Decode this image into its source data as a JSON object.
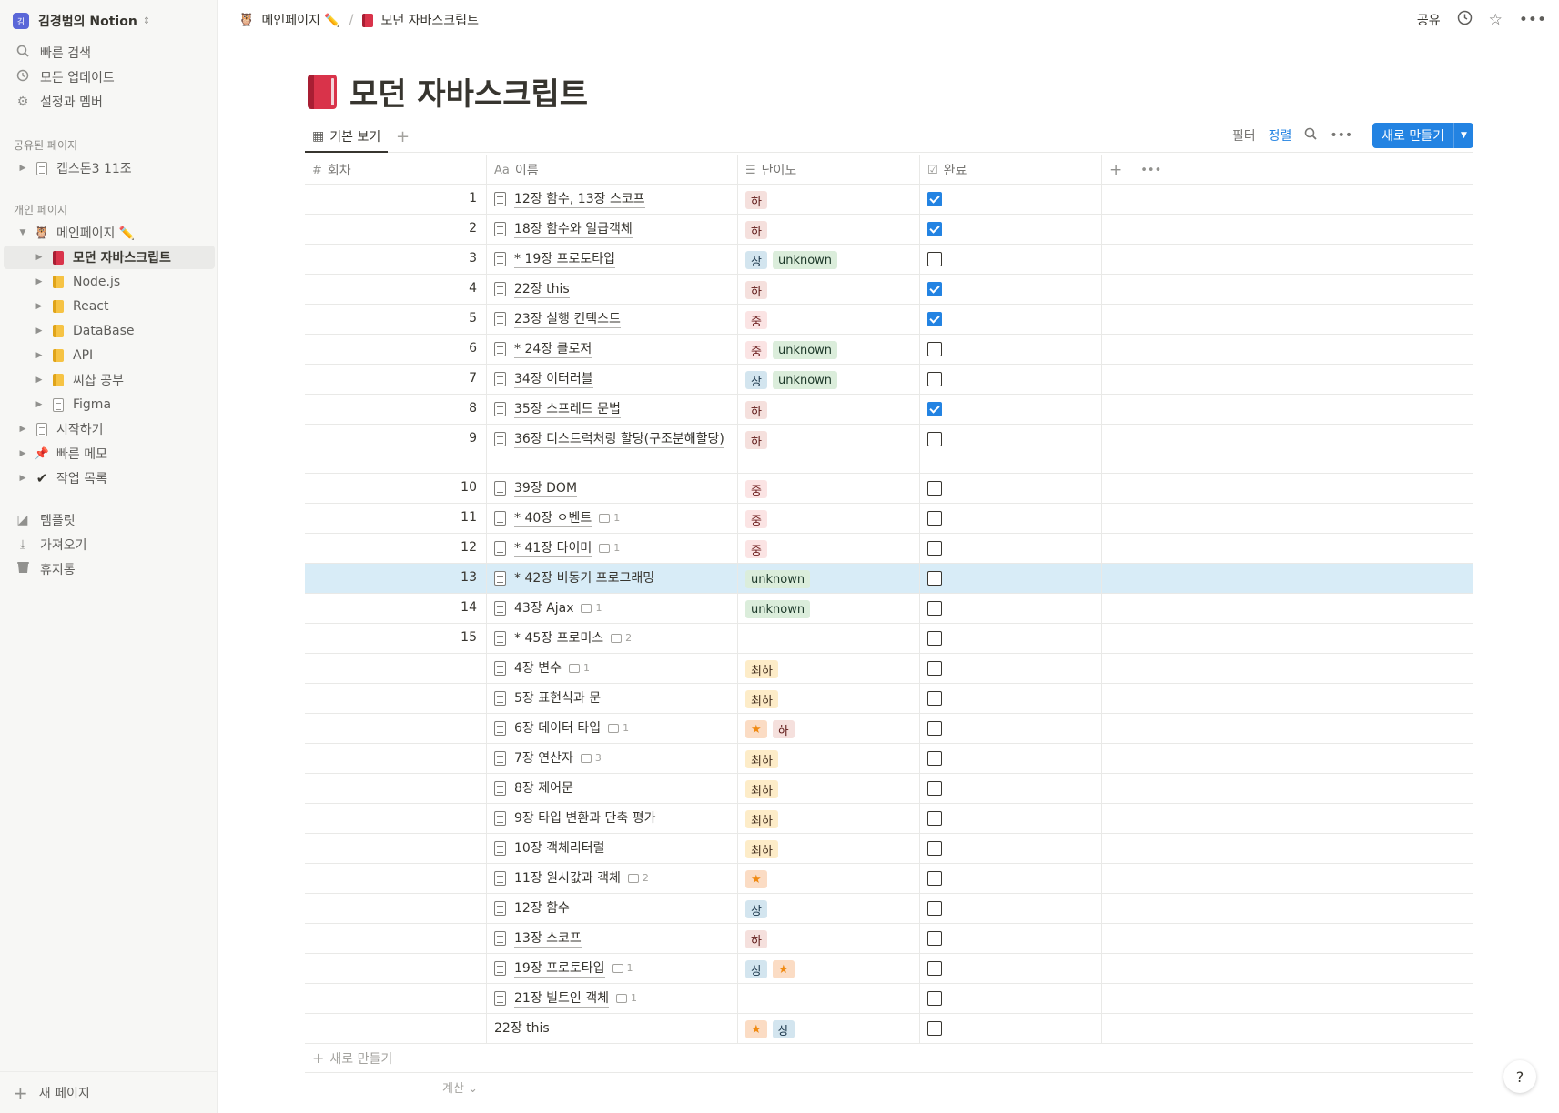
{
  "workspace": {
    "avatar": "김",
    "name": "김경범의 Notion"
  },
  "nav": [
    {
      "icon": "search-icon",
      "label": "빠른 검색"
    },
    {
      "icon": "clock-icon",
      "label": "모든 업데이트"
    },
    {
      "icon": "gear-icon",
      "label": "설정과 멤버"
    }
  ],
  "shared": {
    "label": "공유된 페이지",
    "items": [
      {
        "label": "캡스톤3 11조"
      }
    ]
  },
  "private": {
    "label": "개인 페이지",
    "main_label": "메인페이지 ✏️",
    "children": [
      {
        "label": "모던 자바스크립트"
      },
      {
        "label": "Node.js"
      },
      {
        "label": "React"
      },
      {
        "label": "DataBase"
      },
      {
        "label": "API"
      },
      {
        "label": "씨샵 공부"
      },
      {
        "label": "Figma"
      }
    ],
    "others": [
      {
        "label": "시작하기"
      },
      {
        "label": "빠른 메모"
      },
      {
        "label": "작업 목록"
      }
    ]
  },
  "tools": [
    {
      "icon": "template-icon",
      "label": "템플릿"
    },
    {
      "icon": "import-icon",
      "label": "가져오기"
    },
    {
      "icon": "trash-icon",
      "label": "휴지통"
    }
  ],
  "new_page_label": "새 페이지",
  "breadcrumb": {
    "parent": "메인페이지 ✏️",
    "sep": "/",
    "current": "모던 자바스크립트"
  },
  "topbar": {
    "share": "공유"
  },
  "title": "모던 자바스크립트",
  "view": {
    "tab_label": "기본 보기",
    "filter": "필터",
    "sort": "정렬",
    "new_button": "새로 만들기"
  },
  "columns": {
    "round": "회차",
    "name": "이름",
    "difficulty": "난이도",
    "done": "완료"
  },
  "add_row_label": "새로 만들기",
  "calc_label": "계산",
  "help_label": "?",
  "rows": [
    {
      "num": "1",
      "name": "12장 함수, 13장 스코프",
      "tags": [
        "하"
      ],
      "done": true
    },
    {
      "num": "2",
      "name": "18장 함수와 일급객체",
      "tags": [
        "하"
      ],
      "done": true
    },
    {
      "num": "3",
      "name": "* 19장 프로토타입",
      "tags": [
        "상",
        "unknown"
      ],
      "done": false
    },
    {
      "num": "4",
      "name": "22장 this",
      "tags": [
        "하"
      ],
      "done": true
    },
    {
      "num": "5",
      "name": "23장 실행 컨텍스트",
      "tags": [
        "중"
      ],
      "done": true
    },
    {
      "num": "6",
      "name": "* 24장 클로저",
      "tags": [
        "중",
        "unknown"
      ],
      "done": false
    },
    {
      "num": "7",
      "name": "34장 이터러블",
      "tags": [
        "상",
        "unknown"
      ],
      "done": false
    },
    {
      "num": "8",
      "name": "35장 스프레드 문법",
      "tags": [
        "하"
      ],
      "done": true
    },
    {
      "num": "9",
      "name": "36장 디스트럭처링 할당(구조분해할당)",
      "tags": [
        "하"
      ],
      "done": false
    },
    {
      "num": "10",
      "name": "39장 DOM",
      "tags": [
        "중"
      ],
      "done": false
    },
    {
      "num": "11",
      "name": "* 40장 ㅇ벤트",
      "comments": "1",
      "tags": [
        "중"
      ],
      "done": false
    },
    {
      "num": "12",
      "name": "* 41장 타이머",
      "comments": "1",
      "tags": [
        "중"
      ],
      "done": false
    },
    {
      "num": "13",
      "name": "* 42장 비동기 프로그래밍",
      "tags": [
        "unknown"
      ],
      "done": false
    },
    {
      "num": "14",
      "name": "43장 Ajax",
      "comments": "1",
      "tags": [
        "unknown"
      ],
      "done": false
    },
    {
      "num": "15",
      "name": "* 45장 프로미스",
      "comments": "2",
      "tags": [],
      "done": false
    },
    {
      "num": "",
      "name": "4장 변수",
      "comments": "1",
      "tags": [
        "최하"
      ],
      "done": false
    },
    {
      "num": "",
      "name": "5장 표현식과 문",
      "tags": [
        "최하"
      ],
      "done": false
    },
    {
      "num": "",
      "name": "6장 데이터 타입",
      "comments": "1",
      "tags": [
        "★",
        "하"
      ],
      "done": false
    },
    {
      "num": "",
      "name": "7장 연산자",
      "comments": "3",
      "tags": [
        "최하"
      ],
      "done": false
    },
    {
      "num": "",
      "name": "8장 제어문",
      "tags": [
        "최하"
      ],
      "done": false
    },
    {
      "num": "",
      "name": "9장 타입 변환과 단축 평가",
      "tags": [
        "최하"
      ],
      "done": false
    },
    {
      "num": "",
      "name": "10장 객체리터럴",
      "tags": [
        "최하"
      ],
      "done": false
    },
    {
      "num": "",
      "name": "11장 원시값과 객체",
      "comments": "2",
      "tags": [
        "★"
      ],
      "done": false
    },
    {
      "num": "",
      "name": "12장 함수",
      "tags": [
        "상"
      ],
      "done": false
    },
    {
      "num": "",
      "name": "13장 스코프",
      "tags": [
        "하"
      ],
      "done": false
    },
    {
      "num": "",
      "name": "19장 프로토타입",
      "comments": "1",
      "tags": [
        "상",
        "★"
      ],
      "done": false
    },
    {
      "num": "",
      "name": "21장 빌트인 객체",
      "comments": "1",
      "tags": [],
      "done": false
    },
    {
      "num": "",
      "name": "22장 this",
      "tags": [
        "★",
        "상"
      ],
      "done": false,
      "no_icon": true
    }
  ]
}
